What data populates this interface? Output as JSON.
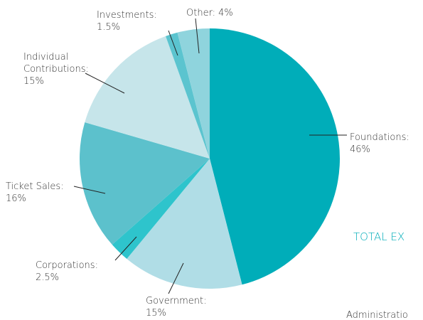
{
  "chart_data": {
    "type": "pie",
    "categories": [
      "Foundations:",
      "Government:",
      "Corporations:",
      "Ticket Sales:",
      "Individual Contributions:",
      "Investments:",
      "Other:"
    ],
    "values": [
      46,
      15,
      2.5,
      16,
      15,
      1.5,
      4
    ],
    "value_labels": [
      "46%",
      "15%",
      "2.5%",
      "16%",
      "15%",
      "1.5%",
      "4%"
    ],
    "colors": [
      "#00adb9",
      "#b0dde6",
      "#2ec4cc",
      "#5cc1cc",
      "#c6e5ea",
      "#5bc4cf",
      "#8fd4dd"
    ]
  },
  "other_texts": [
    "TOTAL EX",
    "Administratio"
  ]
}
